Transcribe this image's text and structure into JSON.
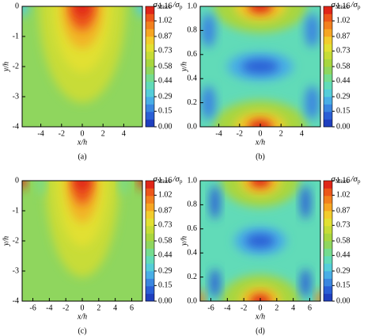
{
  "chart_data": [
    {
      "type": "contour",
      "caption": "(a)",
      "x_label": "x/h",
      "y_label": "y/h",
      "xlim": [
        -5.8,
        5.8
      ],
      "xticks": [
        -4,
        -2,
        0,
        2,
        4
      ],
      "ylim": [
        -4,
        0
      ],
      "yticks": [
        0,
        -1,
        -2,
        -3,
        -4
      ],
      "colorbar": {
        "title_parts": [
          "σ",
          "Mises",
          " /σ",
          "p"
        ],
        "lim": [
          0,
          1.16
        ],
        "ticks": [
          1.16,
          1.02,
          0.87,
          0.73,
          0.58,
          0.44,
          0.29,
          0.15,
          {
            "value": 0,
            "label": "0.00"
          }
        ],
        "colormap": [
          "#1f3fbf",
          "#2a5fd6",
          "#3a86e0",
          "#49aee6",
          "#55cdd9",
          "#61dbb8",
          "#74dc8f",
          "#8fd65e",
          "#a8d63f",
          "#c6dc36",
          "#e2e032",
          "#f2cc2c",
          "#f6a623",
          "#f2801e",
          "#ec561a",
          "#e02518"
        ]
      }
    },
    {
      "type": "contour",
      "caption": "(b)",
      "x_label": "x/h",
      "y_label": "y/h",
      "xlim": [
        -5.8,
        5.8
      ],
      "xticks": [
        -4,
        -2,
        0,
        2,
        4
      ],
      "ylim": [
        0,
        1
      ],
      "yticks": [
        {
          "value": 1,
          "label": "1.0"
        },
        0.8,
        0.6,
        0.4,
        0.2,
        {
          "value": 0,
          "label": "0.0"
        }
      ],
      "colorbar": {
        "title_parts": [
          "σ",
          "Mises",
          " /σ",
          "p"
        ],
        "lim": [
          0,
          1.16
        ],
        "ticks": [
          1.16,
          1.02,
          0.87,
          0.73,
          0.58,
          0.44,
          0.29,
          0.15,
          {
            "value": 0,
            "label": "0.00"
          }
        ],
        "colormap": [
          "#1f3fbf",
          "#2a5fd6",
          "#3a86e0",
          "#49aee6",
          "#55cdd9",
          "#61dbb8",
          "#74dc8f",
          "#8fd65e",
          "#a8d63f",
          "#c6dc36",
          "#e2e032",
          "#f2cc2c",
          "#f6a623",
          "#f2801e",
          "#ec561a",
          "#e02518"
        ]
      }
    },
    {
      "type": "contour",
      "caption": "(c)",
      "x_label": "x/h",
      "y_label": "y/h",
      "xlim": [
        -7.3,
        7.3
      ],
      "xticks": [
        -6,
        -4,
        -2,
        0,
        2,
        4,
        6
      ],
      "ylim": [
        -4,
        0
      ],
      "yticks": [
        0,
        -1,
        -2,
        -3,
        -4
      ],
      "colorbar": {
        "title_parts": [
          "σ",
          "Mises",
          " /σ",
          "p"
        ],
        "lim": [
          0,
          1.16
        ],
        "ticks": [
          1.16,
          1.02,
          0.87,
          0.73,
          0.58,
          0.44,
          0.29,
          0.15,
          {
            "value": 0,
            "label": "0.00"
          }
        ],
        "colormap": [
          "#1f3fbf",
          "#2a5fd6",
          "#3a86e0",
          "#49aee6",
          "#55cdd9",
          "#61dbb8",
          "#74dc8f",
          "#8fd65e",
          "#a8d63f",
          "#c6dc36",
          "#e2e032",
          "#f2cc2c",
          "#f6a623",
          "#f2801e",
          "#ec561a",
          "#e02518"
        ]
      }
    },
    {
      "type": "contour",
      "caption": "(d)",
      "x_label": "x/h",
      "y_label": "y/h",
      "xlim": [
        -7.3,
        7.3
      ],
      "xticks": [
        -6,
        -4,
        -2,
        0,
        2,
        4,
        6
      ],
      "ylim": [
        0,
        1
      ],
      "yticks": [
        {
          "value": 1,
          "label": "1.0"
        },
        0.8,
        0.6,
        0.4,
        0.2,
        {
          "value": 0,
          "label": "0.0"
        }
      ],
      "colorbar": {
        "title_parts": [
          "σ",
          "Mises",
          " /σ",
          "p"
        ],
        "lim": [
          0,
          1.16
        ],
        "ticks": [
          1.16,
          1.02,
          0.87,
          0.73,
          0.58,
          0.44,
          0.29,
          0.15,
          {
            "value": 0,
            "label": "0.00"
          }
        ],
        "colormap": [
          "#1f3fbf",
          "#2a5fd6",
          "#3a86e0",
          "#49aee6",
          "#55cdd9",
          "#61dbb8",
          "#74dc8f",
          "#8fd65e",
          "#a8d63f",
          "#c6dc36",
          "#e2e032",
          "#f2cc2c",
          "#f6a623",
          "#f2801e",
          "#ec561a",
          "#e02518"
        ]
      }
    }
  ]
}
